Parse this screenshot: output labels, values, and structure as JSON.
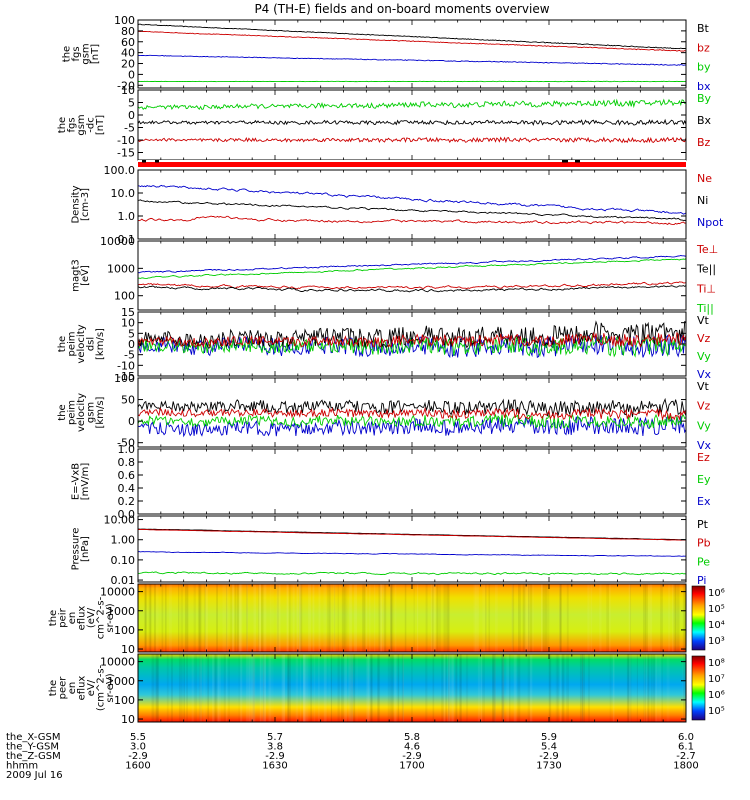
{
  "title": "P4 (TH-E) fields and on-board moments overview",
  "colors": {
    "black": "#000000",
    "red": "#cc0000",
    "green": "#00cc00",
    "blue": "#0000cc",
    "redbar": "#ff0000"
  },
  "panels": [
    {
      "id": "fgs-mag",
      "ylabel": [
        "the",
        "fgs",
        "gsm",
        "[nT]"
      ],
      "ticks": [
        "100",
        "80",
        "60",
        "40",
        "20",
        "0",
        "-20"
      ],
      "tick_values": [
        100,
        80,
        60,
        40,
        20,
        0,
        -20
      ],
      "ylim": [
        -25,
        100
      ],
      "legend": [
        {
          "label": "Bt",
          "color": "#000000"
        },
        {
          "label": "bz",
          "color": "#cc0000"
        },
        {
          "label": "by",
          "color": "#00cc00"
        },
        {
          "label": "bx",
          "color": "#0000cc"
        }
      ],
      "series": [
        {
          "name": "Bt",
          "color": "#000000",
          "start": 92,
          "end": 47,
          "noise": 0.5
        },
        {
          "name": "bz",
          "color": "#cc0000",
          "start": 79,
          "end": 43,
          "noise": 0.5
        },
        {
          "name": "by",
          "color": "#0000cc",
          "start": 35,
          "end": 17,
          "noise": 0.5
        },
        {
          "name": "bx",
          "color": "#00cc00",
          "start": -13,
          "end": -13,
          "noise": 0.3
        }
      ]
    },
    {
      "id": "fgs-gsm-dc",
      "ylabel": [
        "the",
        "fgs",
        "gsm",
        "-dc",
        "[nT]"
      ],
      "ticks": [
        "10",
        "5",
        "0",
        "-5",
        "-10",
        "-15"
      ],
      "tick_values": [
        10,
        5,
        0,
        -5,
        -10,
        -15
      ],
      "ylim": [
        -18,
        10
      ],
      "legend": [
        {
          "label": "By",
          "color": "#00cc00"
        },
        {
          "label": "Bx",
          "color": "#000000"
        },
        {
          "label": "Bz",
          "color": "#cc0000"
        }
      ],
      "series": [
        {
          "name": "By",
          "color": "#00cc00",
          "start": 3,
          "end": 5,
          "noise": 0.8
        },
        {
          "name": "Bx",
          "color": "#000000",
          "start": -3,
          "end": -3,
          "noise": 0.6
        },
        {
          "name": "Bz",
          "color": "#cc0000",
          "start": -10,
          "end": -10,
          "noise": 0.6
        }
      ]
    },
    {
      "id": "density",
      "ylabel": [
        "Density",
        "[cm-3]"
      ],
      "log": true,
      "ticks": [
        "100.0",
        "10.0",
        "1.0",
        "0.1"
      ],
      "tick_values": [
        100,
        10,
        1,
        0.1
      ],
      "ylim": [
        0.1,
        100
      ],
      "legend": [
        {
          "label": "Ne",
          "color": "#cc0000"
        },
        {
          "label": "Ni",
          "color": "#000000"
        },
        {
          "label": "Npot",
          "color": "#0000cc"
        }
      ],
      "series": [
        {
          "name": "Npot",
          "color": "#0000cc",
          "start": 22,
          "end": 1.3,
          "noise": 0.04
        },
        {
          "name": "Ni",
          "color": "#000000",
          "start": 4.5,
          "end": 0.7,
          "noise": 0.03
        },
        {
          "name": "Ne",
          "color": "#cc0000",
          "start": 0.7,
          "end": 0.5,
          "noise": 0.04,
          "bump": 0.5
        }
      ]
    },
    {
      "id": "temperature",
      "ylabel": [
        "magt3",
        "[eV]"
      ],
      "log": true,
      "ticks": [
        "10000",
        "1000",
        "100"
      ],
      "tick_values": [
        10000,
        1000,
        100
      ],
      "ylim": [
        30,
        10000
      ],
      "legend": [
        {
          "label": "Te⊥",
          "color": "#cc0000"
        },
        {
          "label": "Te||",
          "color": "#000000"
        },
        {
          "label": "Ti⊥",
          "color": "#cc0000"
        },
        {
          "label": "Ti||",
          "color": "#00cc00"
        }
      ],
      "series": [
        {
          "name": "Ti⊥",
          "color": "#0000cc",
          "start": 700,
          "end": 2800,
          "noise": 0.02
        },
        {
          "name": "Ti||",
          "color": "#00cc00",
          "start": 450,
          "end": 2200,
          "noise": 0.02
        },
        {
          "name": "Te⊥",
          "color": "#cc0000",
          "start": 260,
          "end": 300,
          "noise": 0.03,
          "sag": 0.3
        },
        {
          "name": "Te||",
          "color": "#000000",
          "start": 210,
          "end": 230,
          "noise": 0.03,
          "sag": 0.3
        }
      ]
    },
    {
      "id": "peim-velocity-dsl",
      "ylabel": [
        "the",
        "peim",
        "velocity",
        "dsl",
        "[km/s]"
      ],
      "ticks": [
        "15",
        "10",
        "5",
        "0",
        "-5",
        "-10",
        "-15"
      ],
      "tick_values": [
        15,
        10,
        5,
        0,
        -5,
        -10,
        -15
      ],
      "ylim": [
        -15,
        15
      ],
      "legend": [
        {
          "label": "Vt",
          "color": "#000000"
        },
        {
          "label": "Vz",
          "color": "#cc0000"
        },
        {
          "label": "Vy",
          "color": "#00cc00"
        },
        {
          "label": "Vx",
          "color": "#0000cc"
        }
      ],
      "series": [
        {
          "name": "Vx",
          "color": "#0000cc",
          "start": -1,
          "end": -1,
          "noise": 3.5
        },
        {
          "name": "Vy",
          "color": "#00cc00",
          "start": -1,
          "end": -1,
          "noise": 3.0
        },
        {
          "name": "Vt",
          "color": "#000000",
          "start": 2,
          "end": 5,
          "noise": 3.5
        },
        {
          "name": "Vz",
          "color": "#cc0000",
          "start": 1,
          "end": 2,
          "noise": 2.0
        }
      ]
    },
    {
      "id": "peim-velocity-gsm",
      "ylabel": [
        "the",
        "peim",
        "velocity",
        "gsm",
        "[km/s]"
      ],
      "ticks": [
        "100",
        "50",
        "0",
        "-50"
      ],
      "tick_values": [
        100,
        50,
        0,
        -50
      ],
      "ylim": [
        -60,
        100
      ],
      "legend": [
        {
          "label": "Vt",
          "color": "#000000"
        },
        {
          "label": "Vz",
          "color": "#cc0000"
        },
        {
          "label": "Vy",
          "color": "#00cc00"
        },
        {
          "label": "Vx",
          "color": "#0000cc"
        }
      ],
      "series": [
        {
          "name": "Vx",
          "color": "#0000cc",
          "start": -20,
          "end": -10,
          "noise": 14
        },
        {
          "name": "Vy",
          "color": "#00cc00",
          "start": 0,
          "end": 0,
          "noise": 10
        },
        {
          "name": "Vt",
          "color": "#000000",
          "start": 35,
          "end": 30,
          "noise": 12
        },
        {
          "name": "Vz",
          "color": "#cc0000",
          "start": 20,
          "end": 15,
          "noise": 8
        }
      ]
    },
    {
      "id": "efield",
      "ylabel": [
        "E=-VxB",
        "[mV/m]"
      ],
      "ticks": [
        "1.0",
        "0.8",
        "0.6",
        "0.4",
        "0.2",
        "0.0"
      ],
      "tick_values": [
        1.0,
        0.8,
        0.6,
        0.4,
        0.2,
        0.0
      ],
      "ylim": [
        0,
        1
      ],
      "legend": [
        {
          "label": "Ez",
          "color": "#cc0000"
        },
        {
          "label": "Ey",
          "color": "#00cc00"
        },
        {
          "label": "Ex",
          "color": "#0000cc"
        }
      ],
      "series": []
    },
    {
      "id": "pressure",
      "ylabel": [
        "Pressure",
        "[nPa]"
      ],
      "log": true,
      "ticks": [
        "10.00",
        "1.00",
        "0.10",
        "0.01"
      ],
      "tick_values": [
        10,
        1,
        0.1,
        0.01
      ],
      "ylim": [
        0.008,
        15
      ],
      "legend": [
        {
          "label": "Pt",
          "color": "#000000"
        },
        {
          "label": "Pb",
          "color": "#cc0000"
        },
        {
          "label": "Pe",
          "color": "#00cc00"
        },
        {
          "label": "Pi",
          "color": "#0000cc"
        }
      ],
      "series": [
        {
          "name": "Pt",
          "color": "#000000",
          "start": 3.4,
          "end": 1.0,
          "noise": 0.005
        },
        {
          "name": "Pb",
          "color": "#cc0000",
          "start": 3.2,
          "end": 0.95,
          "noise": 0.005
        },
        {
          "name": "Pi",
          "color": "#0000cc",
          "start": 0.25,
          "end": 0.15,
          "noise": 0.01
        },
        {
          "name": "Pe",
          "color": "#00cc00",
          "start": 0.023,
          "end": 0.02,
          "noise": 0.03
        }
      ]
    },
    {
      "id": "peir-spec",
      "ylabel": [
        "the",
        "peir",
        "en",
        "eflux",
        "(eV/",
        "cm^2-s-",
        "sr-eV)"
      ],
      "log": true,
      "spectrogram": true,
      "ticks": [
        "10000",
        "1000",
        "100",
        "10"
      ],
      "tick_values": [
        10000,
        1000,
        100,
        10
      ],
      "ylim": [
        7,
        25000
      ],
      "colorbar": [
        "10⁶",
        "10⁵",
        "10⁴",
        "10³"
      ]
    },
    {
      "id": "peer-spec",
      "ylabel": [
        "the",
        "peer",
        "en",
        "eflux",
        "eV/",
        "(cm^2-s-",
        "sr-eV)"
      ],
      "log": true,
      "spectrogram": true,
      "ticks": [
        "10000",
        "1000",
        "100",
        "10"
      ],
      "tick_values": [
        10000,
        1000,
        100,
        10
      ],
      "ylim": [
        7,
        25000
      ],
      "colorbar": [
        "10⁸",
        "10⁷",
        "10⁶",
        "10⁵"
      ]
    }
  ],
  "xaxis": {
    "rows": [
      {
        "label": "the_X-GSM",
        "values": [
          "5.5",
          "5.7",
          "5.8",
          "5.9",
          "6.0"
        ]
      },
      {
        "label": "the_Y-GSM",
        "values": [
          "3.0",
          "3.8",
          "4.6",
          "5.4",
          "6.1"
        ]
      },
      {
        "label": "the_Z-GSM",
        "values": [
          "-2.9",
          "-2.9",
          "-2.9",
          "-2.9",
          "-2.7"
        ]
      },
      {
        "label": "hhmm",
        "values": [
          "1600",
          "1630",
          "1700",
          "1730",
          "1800"
        ]
      }
    ],
    "date": "2009 Jul 16",
    "time_range_minutes": [
      0,
      120
    ],
    "major_tick_minutes": [
      0,
      30,
      60,
      90,
      120
    ]
  },
  "chart_data": {
    "type": "line",
    "title": "P4 (TH-E) fields and on-board moments overview",
    "x": [
      "1600",
      "1630",
      "1700",
      "1730",
      "1800"
    ],
    "series": [
      {
        "name": "Bt",
        "values": [
          92,
          81,
          70,
          58,
          47
        ]
      },
      {
        "name": "bz",
        "values": [
          79,
          70,
          61,
          52,
          43
        ]
      },
      {
        "name": "by",
        "values": [
          35,
          30,
          26,
          21,
          17
        ]
      },
      {
        "name": "bx",
        "values": [
          -13,
          -13,
          -13,
          -13,
          -13
        ]
      },
      {
        "name": "Npot",
        "values": [
          22,
          10,
          4.5,
          2.2,
          1.3
        ]
      },
      {
        "name": "Ni",
        "values": [
          4.5,
          2.8,
          1.6,
          1.0,
          0.7
        ]
      },
      {
        "name": "Pt",
        "values": [
          3.4,
          2.5,
          1.8,
          1.3,
          1.0
        ]
      },
      {
        "name": "Pi",
        "values": [
          0.25,
          0.22,
          0.2,
          0.17,
          0.15
        ]
      }
    ]
  }
}
